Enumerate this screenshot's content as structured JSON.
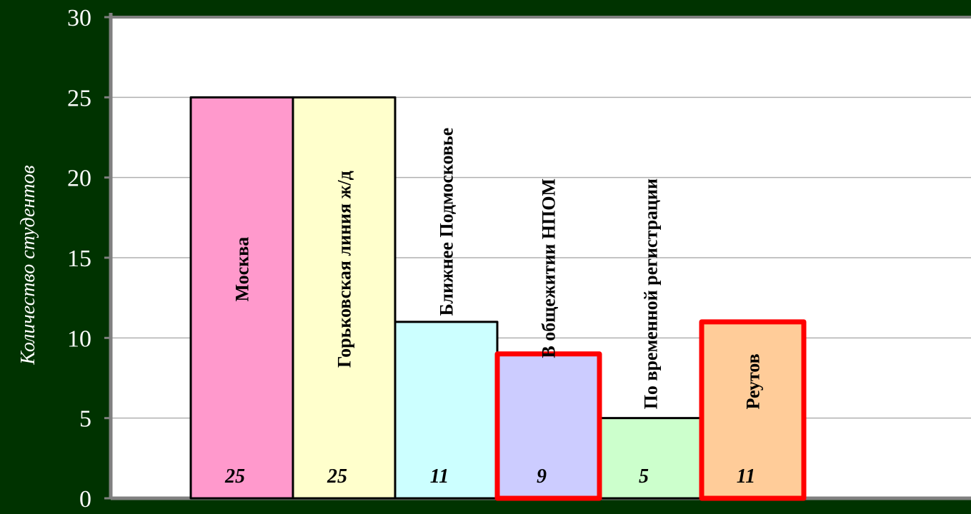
{
  "chart_data": {
    "type": "bar",
    "title": "",
    "xlabel": "",
    "ylabel": "Количество студентов",
    "ylim": [
      0,
      30
    ],
    "yticks": [
      0,
      5,
      10,
      15,
      20,
      25,
      30
    ],
    "grid": true,
    "legend": "none",
    "categories": [
      "Москва",
      "Горьковская линия ж/д",
      "Ближнее Подмосковье",
      "В общежитии НПОМ",
      "По временной регистрации",
      "Реутов"
    ],
    "values": [
      25,
      25,
      11,
      9,
      5,
      11
    ],
    "value_labels": [
      "25",
      "25",
      "11",
      "9",
      "5",
      "11"
    ],
    "colors": [
      "#ff99cc",
      "#ffffcc",
      "#ccffff",
      "#ccccff",
      "#ccffcc",
      "#ffcc99"
    ],
    "highlighted": [
      false,
      false,
      false,
      true,
      false,
      true
    ],
    "highlight_color": "#ff0000",
    "background_color": "#003300",
    "plot_color": "#ffffff"
  }
}
